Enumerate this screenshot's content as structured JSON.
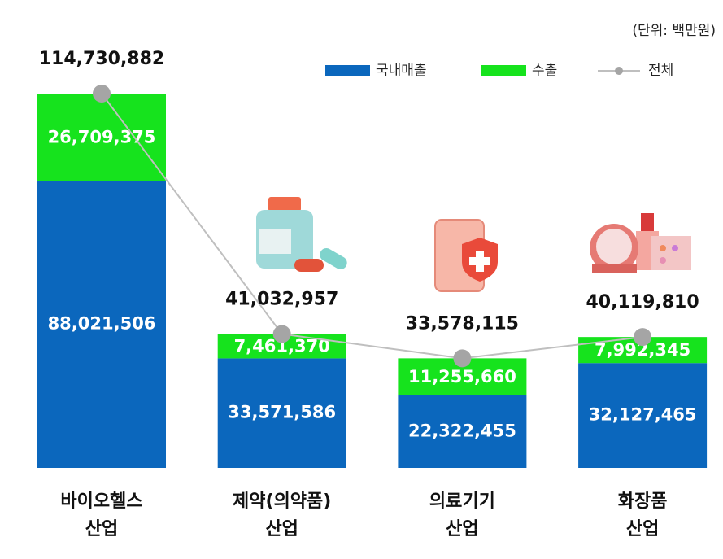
{
  "chart_data": {
    "type": "bar",
    "stacked": true,
    "unit_note": "(단위: 백만원)",
    "categories": [
      "바이오헬스\n산업",
      "제약(의약품)\n산업",
      "의료기기\n산업",
      "화장품\n산업"
    ],
    "series": [
      {
        "name": "국내매출",
        "color": "#0b67bd",
        "values": [
          88021506,
          33571586,
          22322455,
          32127465
        ],
        "value_labels": [
          "88,021,506",
          "33,571,586",
          "22,322,455",
          "32,127,465"
        ]
      },
      {
        "name": "수출",
        "color": "#16e31d",
        "values": [
          26709375,
          7461370,
          11255660,
          7992345
        ],
        "value_labels": [
          "26,709,375",
          "7,461,370",
          "11,255,660",
          "7,992,345"
        ]
      },
      {
        "name": "전체",
        "type": "line",
        "color": "#bfbfbf",
        "marker_color": "#a5a5a5",
        "values": [
          114730882,
          41032957,
          33578115,
          40119810
        ],
        "value_labels": [
          "114,730,882",
          "41,032,957",
          "33,578,115",
          "40,119,810"
        ]
      }
    ]
  }
}
